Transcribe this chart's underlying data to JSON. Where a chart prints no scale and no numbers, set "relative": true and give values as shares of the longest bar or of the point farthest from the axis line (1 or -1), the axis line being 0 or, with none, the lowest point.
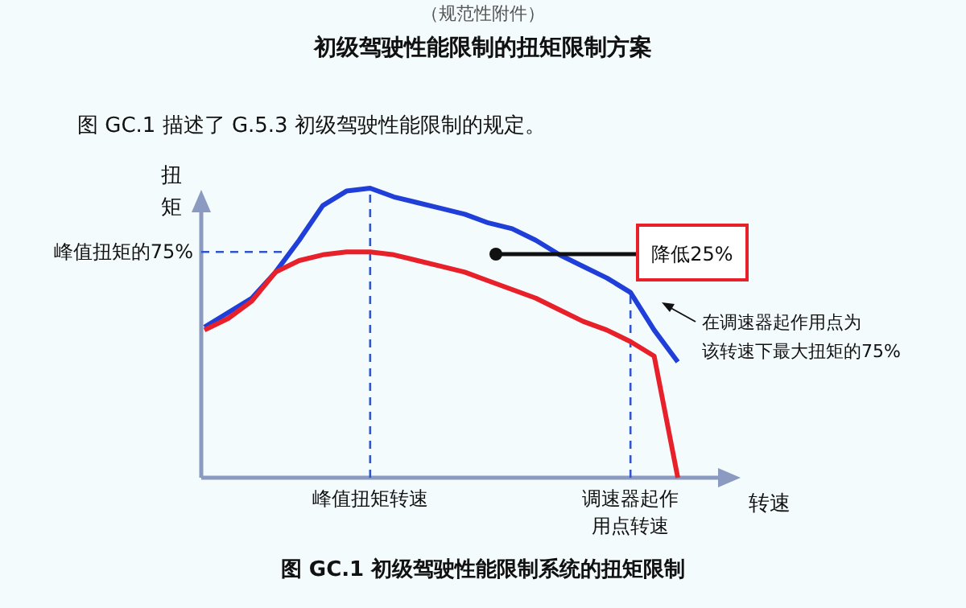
{
  "chart_data": {
    "type": "line",
    "title": "初级驾驶性能限制的扭矩限制方案",
    "ylabel": "扭矩",
    "xlabel": "转速",
    "relative": true,
    "marker": "none",
    "line_style": "solid",
    "categories": [
      null,
      null,
      null,
      null,
      null,
      null,
      null,
      "峰值扭矩转速",
      null,
      null,
      null,
      null,
      null,
      null,
      null,
      null,
      null,
      null,
      "调速器起作用点转速",
      null,
      null
    ],
    "series": [
      {
        "color": "#1f3fd8",
        "values": [
          0.52,
          0.57,
          0.62,
          0.71,
          0.82,
          0.94,
          0.99,
          1.0,
          0.97,
          0.95,
          0.93,
          0.91,
          0.88,
          0.86,
          0.82,
          0.77,
          0.73,
          0.69,
          0.64,
          0.51,
          0.4
        ]
      },
      {
        "color": "#e8202a",
        "values": [
          0.51,
          0.55,
          0.61,
          0.71,
          0.75,
          0.77,
          0.78,
          0.78,
          0.77,
          0.75,
          0.73,
          0.71,
          0.68,
          0.65,
          0.62,
          0.58,
          0.54,
          0.51,
          0.47,
          0.42,
          0
        ]
      }
    ],
    "ref_lines": [
      {
        "axis": "y",
        "value": 0.78,
        "label": "峰值扭矩的75%",
        "color": "#3355cc",
        "line_style": "dashed"
      },
      {
        "axis": "x",
        "value": "峰值扭矩转速",
        "color": "#3355cc",
        "line_style": "dashed"
      },
      {
        "axis": "x",
        "value": "调速器起作用点转速",
        "color": "#3355cc",
        "line_style": "dashed"
      }
    ],
    "annotations": [
      "（规范性附件）",
      "图 GC.1 描述了 G.5.3 初级驾驶性能限制的规定。",
      "降低25%",
      "在调速器起作用点为该转速下最大扭矩的75%",
      "图 GC.1 初级驾驶性能限制系统的扭矩限制"
    ]
  }
}
